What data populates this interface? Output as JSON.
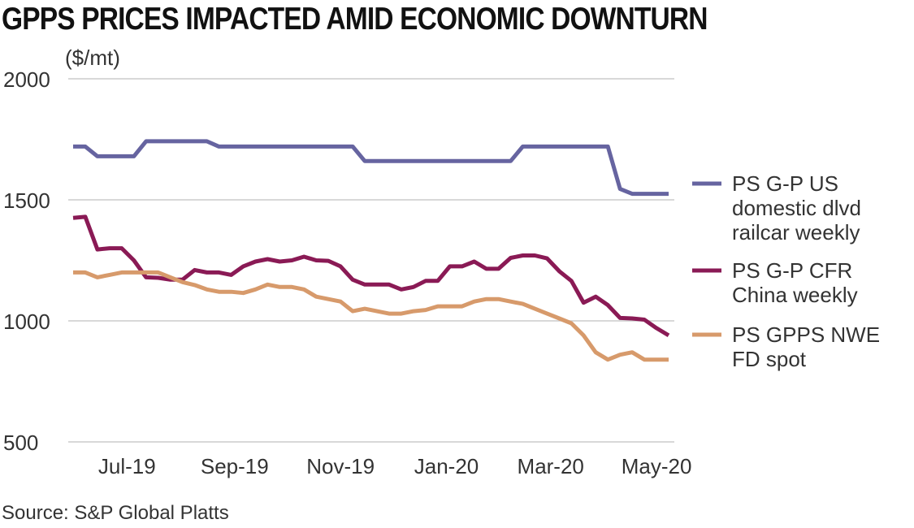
{
  "title": "GPPS PRICES IMPACTED AMID ECONOMIC DOWNTURN",
  "source": "Source: S&P Global Platts",
  "chart_data": {
    "type": "line",
    "title": "GPPS PRICES IMPACTED AMID ECONOMIC DOWNTURN",
    "ylabel": "($/mt)",
    "xlabel": "",
    "ylim": [
      500,
      2000
    ],
    "yticks": [
      500,
      1000,
      1500,
      2000
    ],
    "xtick_labels": [
      "Jul-19",
      "Sep-19",
      "Nov-19",
      "Jan-20",
      "Mar-20",
      "May-20"
    ],
    "grid": true,
    "legend_position": "right",
    "x": [
      "2019-06-07",
      "2019-06-14",
      "2019-06-21",
      "2019-06-28",
      "2019-07-05",
      "2019-07-12",
      "2019-07-19",
      "2019-07-26",
      "2019-08-02",
      "2019-08-09",
      "2019-08-16",
      "2019-08-23",
      "2019-08-30",
      "2019-09-06",
      "2019-09-13",
      "2019-09-20",
      "2019-09-27",
      "2019-10-04",
      "2019-10-11",
      "2019-10-18",
      "2019-10-25",
      "2019-11-01",
      "2019-11-08",
      "2019-11-15",
      "2019-11-22",
      "2019-11-29",
      "2019-12-06",
      "2019-12-13",
      "2019-12-20",
      "2019-12-27",
      "2020-01-03",
      "2020-01-10",
      "2020-01-17",
      "2020-01-24",
      "2020-01-31",
      "2020-02-07",
      "2020-02-14",
      "2020-02-21",
      "2020-02-28",
      "2020-03-06",
      "2020-03-13",
      "2020-03-20",
      "2020-03-27",
      "2020-04-03",
      "2020-04-10",
      "2020-04-17",
      "2020-04-24",
      "2020-05-01",
      "2020-05-08",
      "2020-05-15"
    ],
    "series": [
      {
        "name": "PS G-P US domestic dlvd railcar weekly",
        "color": "#6664a0",
        "values": [
          1720,
          1720,
          1680,
          1680,
          1680,
          1680,
          1742,
          1742,
          1742,
          1742,
          1742,
          1742,
          1720,
          1720,
          1720,
          1720,
          1720,
          1720,
          1720,
          1720,
          1720,
          1720,
          1720,
          1720,
          1660,
          1660,
          1660,
          1660,
          1660,
          1660,
          1660,
          1660,
          1660,
          1660,
          1660,
          1660,
          1660,
          1720,
          1720,
          1720,
          1720,
          1720,
          1720,
          1720,
          1720,
          1545,
          1525,
          1525,
          1525,
          1525
        ]
      },
      {
        "name": "PS G-P CFR China weekly",
        "color": "#8a1a55",
        "values": [
          1425,
          1430,
          1295,
          1300,
          1300,
          1250,
          1180,
          1178,
          1170,
          1170,
          1210,
          1200,
          1200,
          1190,
          1225,
          1245,
          1255,
          1245,
          1250,
          1265,
          1250,
          1248,
          1225,
          1170,
          1150,
          1150,
          1150,
          1130,
          1140,
          1165,
          1165,
          1225,
          1225,
          1245,
          1215,
          1215,
          1260,
          1270,
          1270,
          1258,
          1205,
          1165,
          1075,
          1100,
          1065,
          1012,
          1010,
          1005,
          970,
          940
        ]
      },
      {
        "name": "PS GPPS NWE FD spot",
        "color": "#d79a6b",
        "values": [
          1200,
          1200,
          1180,
          1190,
          1200,
          1200,
          1200,
          1200,
          1180,
          1160,
          1148,
          1130,
          1120,
          1120,
          1115,
          1130,
          1150,
          1140,
          1140,
          1130,
          1100,
          1090,
          1080,
          1040,
          1050,
          1040,
          1030,
          1030,
          1040,
          1045,
          1060,
          1060,
          1060,
          1080,
          1090,
          1090,
          1080,
          1070,
          1050,
          1030,
          1010,
          990,
          940,
          870,
          840,
          860,
          870,
          840,
          840,
          840
        ]
      }
    ]
  }
}
